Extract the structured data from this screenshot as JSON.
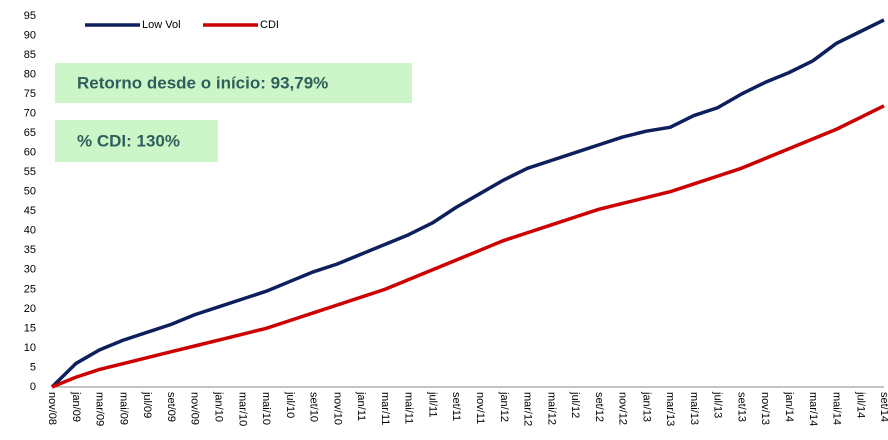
{
  "chart_data": {
    "type": "line",
    "categories": [
      "nov/08",
      "jan/09",
      "mar/09",
      "mai/09",
      "jul/09",
      "set/09",
      "nov/09",
      "jan/10",
      "mar/10",
      "mai/10",
      "jul/10",
      "set/10",
      "nov/10",
      "jan/11",
      "mar/11",
      "mai/11",
      "jul/11",
      "set/11",
      "nov/11",
      "jan/12",
      "mar/12",
      "mai/12",
      "jul/12",
      "set/12",
      "nov/12",
      "jan/13",
      "mar/13",
      "mai/13",
      "jul/13",
      "set/13",
      "nov/13",
      "jan/14",
      "mar/14",
      "mai/14",
      "jul/14",
      "set/14"
    ],
    "series": [
      {
        "name": "Low Vol",
        "color": "#0d1f5c",
        "values": [
          0,
          6,
          9.5,
          12,
          14,
          16,
          18.5,
          20.5,
          22.5,
          24.5,
          27,
          29.5,
          31.5,
          34,
          36.5,
          39,
          42,
          46,
          49.5,
          53,
          56,
          58,
          60,
          62,
          64,
          65.5,
          66.5,
          69.5,
          71.5,
          75,
          78,
          80.5,
          83.5,
          88,
          91,
          94
        ]
      },
      {
        "name": "CDI",
        "color": "#cc0000",
        "values": [
          0,
          2.5,
          4.5,
          6,
          7.5,
          9,
          10.5,
          12,
          13.5,
          15,
          17,
          19,
          21,
          23,
          25,
          27.5,
          30,
          32.5,
          35,
          37.5,
          39.5,
          41.5,
          43.5,
          45.5,
          47,
          48.5,
          50,
          52,
          54,
          56,
          58.5,
          61,
          63.5,
          66,
          69,
          72
        ]
      }
    ],
    "annotations": [
      "Retorno desde o início: 93,79%",
      "% CDI: 130%"
    ],
    "ylim": [
      0,
      95
    ],
    "yticks": [
      0,
      5,
      10,
      15,
      20,
      25,
      30,
      35,
      40,
      45,
      50,
      55,
      60,
      65,
      70,
      75,
      80,
      85,
      90,
      95
    ],
    "grid": false
  }
}
